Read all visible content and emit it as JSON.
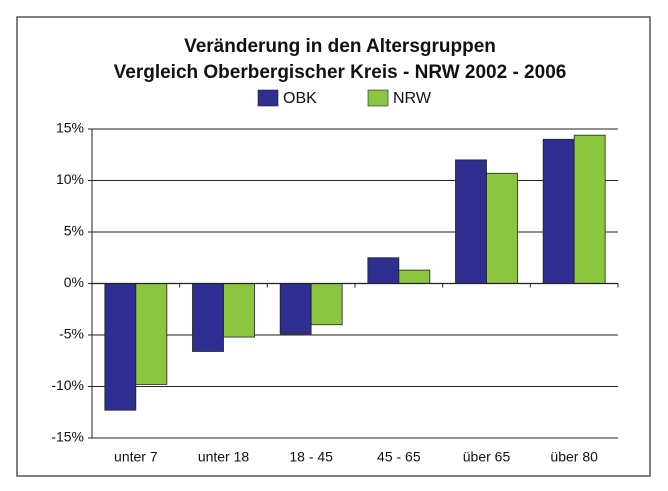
{
  "chart_data": {
    "type": "bar",
    "title": "Veränderung in den Altersgruppen",
    "subtitle": "Vergleich Oberbergischer Kreis - NRW 2002 - 2006",
    "categories": [
      "unter 7",
      "unter 18",
      "18 - 45",
      "45 - 65",
      "über 65",
      "über 80"
    ],
    "series": [
      {
        "name": "OBK",
        "color": "#2e2f91",
        "values": [
          -12.3,
          -6.6,
          -4.9,
          2.5,
          12.0,
          14.0
        ]
      },
      {
        "name": "NRW",
        "color": "#8cc63e",
        "values": [
          -9.8,
          -5.2,
          -4.0,
          1.3,
          10.7,
          14.4
        ]
      }
    ],
    "ylim": [
      -15,
      15
    ],
    "yticks": [
      {
        "value": -15,
        "label": "-15%"
      },
      {
        "value": -10,
        "label": "-10%"
      },
      {
        "value": -5,
        "label": "-5%"
      },
      {
        "value": 0,
        "label": "0%"
      },
      {
        "value": 5,
        "label": "5%"
      },
      {
        "value": 10,
        "label": "10%"
      },
      {
        "value": 15,
        "label": "15%"
      }
    ],
    "grid": true,
    "legend": "top"
  }
}
